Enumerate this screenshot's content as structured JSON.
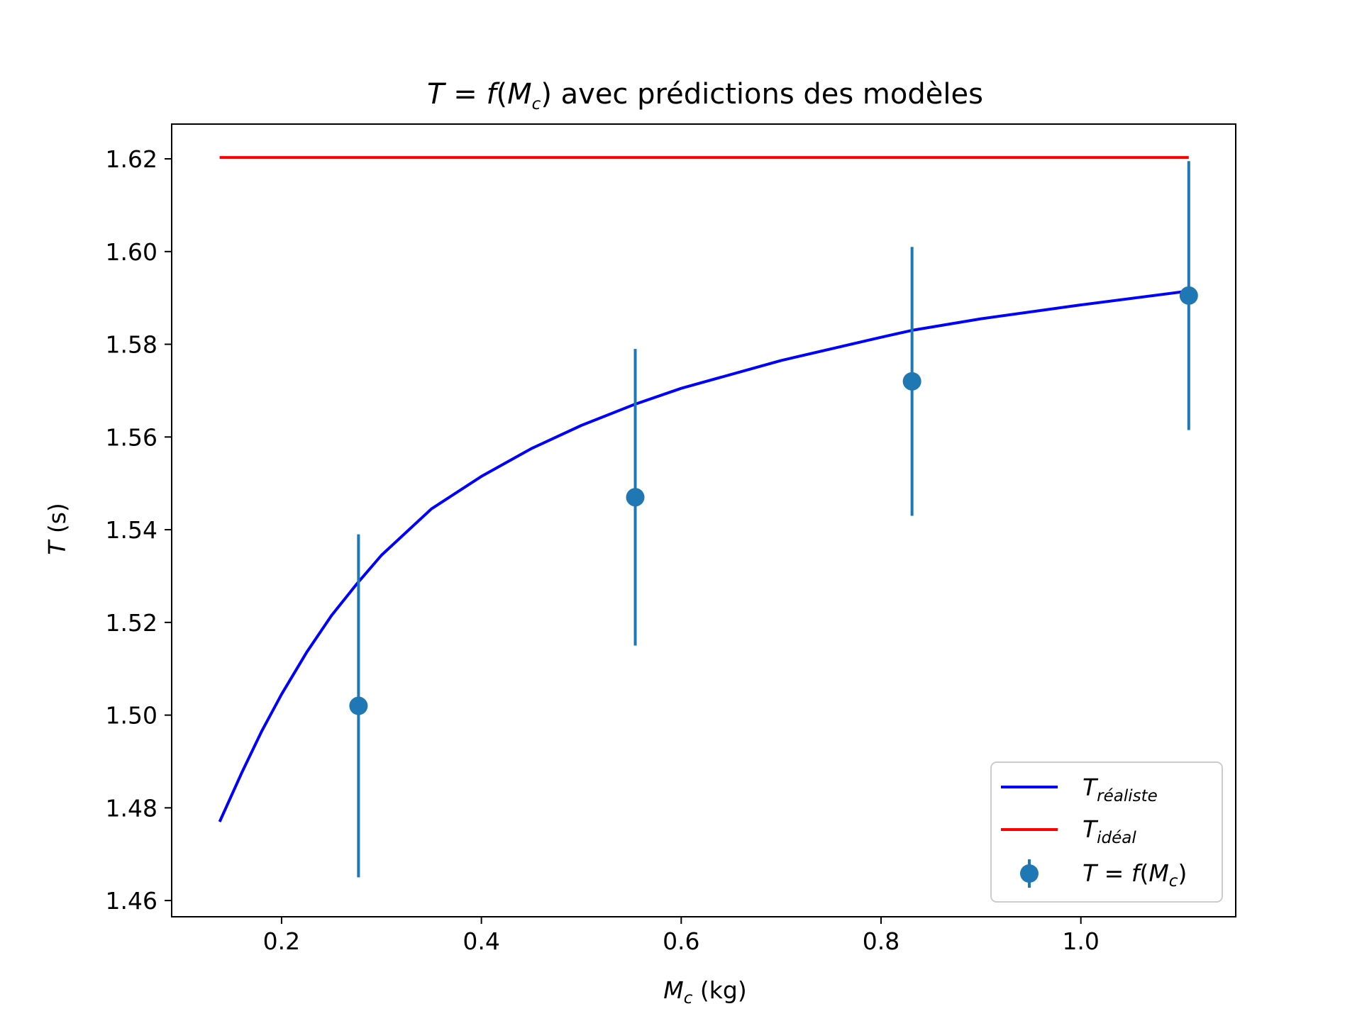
{
  "chart_data": {
    "type": "line",
    "title": {
      "t": "T",
      "eq": " = ",
      "f": "f",
      "open": "(",
      "m": "M",
      "c": "c",
      "close": ")",
      "rest": " avec prédictions des modèles"
    },
    "xlabel": {
      "m": "M",
      "c": "c",
      "unit": " (kg)"
    },
    "ylabel": {
      "t": "T",
      "unit": " (s)"
    },
    "xlim": [
      0.09,
      1.155
    ],
    "ylim": [
      1.4565,
      1.6275
    ],
    "xticks": [
      0.2,
      0.4,
      0.6,
      0.8,
      1.0
    ],
    "xtick_labels": [
      "0.2",
      "0.4",
      "0.6",
      "0.8",
      "1.0"
    ],
    "yticks": [
      1.46,
      1.48,
      1.5,
      1.52,
      1.54,
      1.56,
      1.58,
      1.6,
      1.62
    ],
    "ytick_labels": [
      "1.46",
      "1.48",
      "1.50",
      "1.52",
      "1.54",
      "1.56",
      "1.58",
      "1.60",
      "1.62"
    ],
    "grid": false,
    "legend_position": "bottom-right",
    "series": [
      {
        "name": {
          "t": "T",
          "sub": "réaliste"
        },
        "kind": "line",
        "color": "#0000ff",
        "x": [
          0.138,
          0.16,
          0.18,
          0.2,
          0.225,
          0.25,
          0.276,
          0.3,
          0.35,
          0.4,
          0.45,
          0.5,
          0.553,
          0.6,
          0.7,
          0.8,
          0.831,
          0.9,
          1.0,
          1.108
        ],
        "y": [
          1.477,
          1.4875,
          1.4965,
          1.5045,
          1.5135,
          1.5215,
          1.5285,
          1.5345,
          1.5445,
          1.5515,
          1.5575,
          1.5625,
          1.567,
          1.5705,
          1.5765,
          1.5815,
          1.583,
          1.5855,
          1.5885,
          1.5915
        ]
      },
      {
        "name": {
          "t": "T",
          "sub": "idéal"
        },
        "kind": "line",
        "color": "#ff0000",
        "x": [
          0.138,
          1.108
        ],
        "y": [
          1.6203,
          1.6203
        ]
      },
      {
        "name": {
          "t": "T",
          "eq": " = ",
          "f": "f",
          "open": "(",
          "m": "M",
          "c": "c",
          "close": ")"
        },
        "kind": "errorbar",
        "color": "#1f77b4",
        "x": [
          0.277,
          0.554,
          0.831,
          1.108
        ],
        "y": [
          1.502,
          1.547,
          1.572,
          1.5905
        ],
        "yerr": [
          0.037,
          0.032,
          0.029,
          0.029
        ]
      }
    ]
  }
}
